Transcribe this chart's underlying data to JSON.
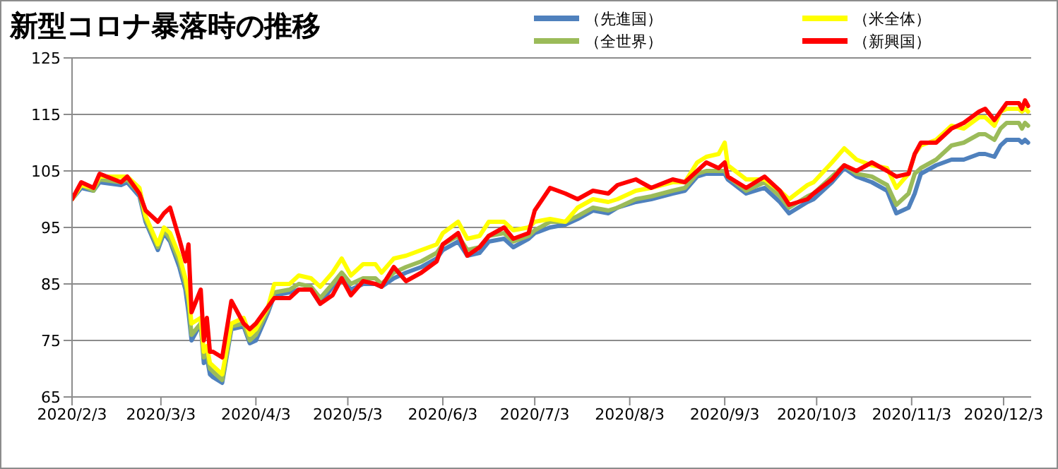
{
  "chart_data": {
    "type": "line",
    "title": "新型コロナ暴落時の推移",
    "x": [
      "2020-02-03",
      "2020-02-06",
      "2020-02-10",
      "2020-02-12",
      "2020-02-19",
      "2020-02-21",
      "2020-02-25",
      "2020-02-27",
      "2020-03-02",
      "2020-03-04",
      "2020-03-06",
      "2020-03-09",
      "2020-03-11",
      "2020-03-12",
      "2020-03-13",
      "2020-03-16",
      "2020-03-17",
      "2020-03-18",
      "2020-03-19",
      "2020-03-20",
      "2020-03-23",
      "2020-03-26",
      "2020-03-30",
      "2020-04-01",
      "2020-04-03",
      "2020-04-07",
      "2020-04-09",
      "2020-04-14",
      "2020-04-17",
      "2020-04-21",
      "2020-04-24",
      "2020-04-28",
      "2020-05-01",
      "2020-05-04",
      "2020-05-08",
      "2020-05-12",
      "2020-05-14",
      "2020-05-18",
      "2020-05-22",
      "2020-05-27",
      "2020-06-01",
      "2020-06-03",
      "2020-06-08",
      "2020-06-11",
      "2020-06-15",
      "2020-06-18",
      "2020-06-23",
      "2020-06-26",
      "2020-07-01",
      "2020-07-03",
      "2020-07-08",
      "2020-07-13",
      "2020-07-17",
      "2020-07-22",
      "2020-07-27",
      "2020-07-30",
      "2020-08-05",
      "2020-08-10",
      "2020-08-17",
      "2020-08-21",
      "2020-08-25",
      "2020-08-28",
      "2020-09-01",
      "2020-09-03",
      "2020-09-04",
      "2020-09-10",
      "2020-09-16",
      "2020-09-21",
      "2020-09-24",
      "2020-09-30",
      "2020-10-02",
      "2020-10-08",
      "2020-10-12",
      "2020-10-16",
      "2020-10-21",
      "2020-10-26",
      "2020-10-29",
      "2020-11-02",
      "2020-11-04",
      "2020-11-06",
      "2020-11-11",
      "2020-11-16",
      "2020-11-20",
      "2020-11-25",
      "2020-11-27",
      "2020-11-30",
      "2020-12-02",
      "2020-12-04",
      "2020-12-08",
      "2020-12-09",
      "2020-12-10",
      "2020-12-11"
    ],
    "series": [
      {
        "name": "（先進国）",
        "color": "#4f81bd",
        "values": [
          100,
          102,
          101.5,
          103,
          102.5,
          103,
          100.5,
          96,
          91,
          94,
          92.5,
          88,
          84,
          80,
          75,
          78,
          71,
          72,
          69,
          68.5,
          67.5,
          77,
          77.5,
          74.5,
          75,
          80,
          83,
          83.5,
          84,
          84,
          81.5,
          84.5,
          86,
          84,
          85,
          85,
          84.5,
          86,
          87,
          88,
          89.5,
          91,
          92.5,
          90,
          90.5,
          92.5,
          93,
          91.5,
          93,
          94,
          95,
          95.5,
          96.5,
          98,
          97.5,
          98.5,
          99.5,
          100,
          101,
          101.5,
          104,
          104.5,
          104.5,
          104.5,
          103.5,
          101,
          102,
          99.5,
          97.5,
          99.5,
          100,
          103,
          105.5,
          104,
          103,
          101.5,
          97.5,
          98.5,
          101,
          104.5,
          106,
          107,
          107,
          108,
          108,
          107.5,
          109.5,
          110.5,
          110.5,
          110,
          110.5,
          110
        ]
      },
      {
        "name": "（全世界）",
        "color": "#9bbb59",
        "values": [
          100,
          102.5,
          101.5,
          103.5,
          103,
          103.5,
          101,
          96.5,
          91.5,
          94.5,
          93,
          89,
          85,
          82,
          76,
          78,
          72,
          73,
          70,
          69.5,
          68,
          77.5,
          78,
          75,
          76,
          80.5,
          83.5,
          84,
          85,
          84.5,
          82.5,
          85,
          87,
          85,
          86,
          86,
          85,
          87,
          88,
          89,
          90.5,
          92,
          93.5,
          91,
          91.5,
          93.5,
          94,
          92.5,
          93.5,
          94.5,
          96,
          96,
          97,
          98.5,
          98,
          98.5,
          100,
          100.5,
          101.5,
          102,
          104.5,
          105,
          105,
          105,
          104,
          101.5,
          103,
          100.5,
          98.5,
          100.5,
          101,
          104,
          106,
          104.5,
          104,
          102.5,
          99,
          101,
          104.5,
          105.5,
          107,
          109.5,
          110,
          111.5,
          111.5,
          110.5,
          112.5,
          113.5,
          113.5,
          112.5,
          113.5,
          113
        ]
      },
      {
        "name": "（米全体）",
        "color": "#ffff00",
        "values": [
          100,
          102.5,
          102,
          104,
          104,
          104,
          102,
          97,
          92,
          95,
          94,
          90,
          86,
          83,
          78,
          79,
          73,
          74,
          71,
          70.5,
          69,
          78,
          79,
          76,
          77,
          81,
          85,
          85,
          86.5,
          86,
          84.5,
          87,
          89.5,
          86.5,
          88.5,
          88.5,
          87,
          89.5,
          90,
          91,
          92,
          94,
          96,
          93,
          93.5,
          96,
          96,
          94.5,
          95,
          96,
          96.5,
          96,
          98.5,
          100,
          99.5,
          100,
          101.5,
          102,
          103,
          103,
          106.5,
          107.5,
          108,
          110,
          106,
          103.5,
          103.5,
          101.5,
          100,
          102.5,
          103,
          106.5,
          109,
          107,
          106,
          105.5,
          102,
          104.5,
          108,
          109.5,
          110.5,
          113,
          112.5,
          114.5,
          114.5,
          113,
          115.5,
          116,
          116,
          115.5,
          116,
          115.5
        ]
      },
      {
        "name": "（新興国）",
        "color": "#ff0000",
        "values": [
          100,
          103,
          102,
          104.5,
          103,
          104,
          101,
          98,
          96,
          97.5,
          98.5,
          93,
          89,
          92,
          80,
          84,
          75,
          79,
          73,
          73,
          72,
          82,
          78,
          77,
          78,
          81,
          82.5,
          82.5,
          84,
          84,
          81.5,
          83,
          86,
          83,
          85.5,
          85,
          84.5,
          88,
          85.5,
          87,
          89,
          92,
          94,
          90,
          91.5,
          93.5,
          95,
          93,
          94,
          98,
          102,
          101,
          100,
          101.5,
          101,
          102.5,
          103.5,
          102,
          103.5,
          103,
          105,
          106.5,
          105.5,
          106.5,
          104,
          102,
          104,
          101.5,
          99,
          100,
          101,
          103.5,
          106,
          105,
          106.5,
          105,
          104,
          104.5,
          108,
          110,
          110,
          112.5,
          113.5,
          115.5,
          116,
          114,
          115.5,
          117,
          117,
          116,
          117.5,
          116.5
        ]
      }
    ],
    "xlim": [
      "2020-02-03",
      "2020-12-12"
    ],
    "xticks": [
      {
        "value": "2020-02-03",
        "label": "2020/2/3"
      },
      {
        "value": "2020-03-03",
        "label": "2020/3/3"
      },
      {
        "value": "2020-04-03",
        "label": "2020/4/3"
      },
      {
        "value": "2020-05-03",
        "label": "2020/5/3"
      },
      {
        "value": "2020-06-03",
        "label": "2020/6/3"
      },
      {
        "value": "2020-07-03",
        "label": "2020/7/3"
      },
      {
        "value": "2020-08-03",
        "label": "2020/8/3"
      },
      {
        "value": "2020-09-03",
        "label": "2020/9/3"
      },
      {
        "value": "2020-10-03",
        "label": "2020/10/3"
      },
      {
        "value": "2020-11-03",
        "label": "2020/11/3"
      },
      {
        "value": "2020-12-03",
        "label": "2020/12/3"
      }
    ],
    "ylim": [
      65,
      125
    ],
    "yticks": [
      65,
      75,
      85,
      95,
      105,
      115,
      125
    ],
    "grid": "y",
    "legend": "top right"
  }
}
